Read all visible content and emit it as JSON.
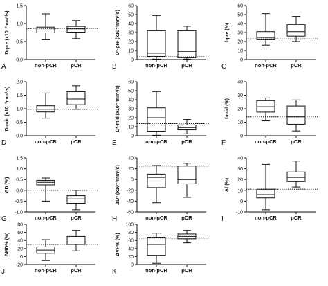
{
  "figure": {
    "background": "#ffffff",
    "box_fill": "#ffffff",
    "line_color": "#111111"
  },
  "chart_data": [
    {
      "type": "box",
      "panel_label": "A",
      "ylabel": "D-pre (x10⁻³mm²/s)",
      "categories": [
        "non-pCR",
        "pCR"
      ],
      "ylim": [
        0,
        1.5
      ],
      "yticks": [
        "0.0",
        "0.5",
        "1.0",
        "1.5"
      ],
      "ytick_values": [
        0,
        0.5,
        1.0,
        1.5
      ],
      "boxes": [
        {
          "min": 0.55,
          "q1": 0.74,
          "median": 0.82,
          "q3": 0.9,
          "max": 1.27
        },
        {
          "min": 0.58,
          "q1": 0.76,
          "median": 0.85,
          "q3": 0.92,
          "max": 1.08
        }
      ],
      "reference_line": 0.86
    },
    {
      "type": "box",
      "panel_label": "B",
      "ylabel": "D*-pre (x10⁻³mm²/s)",
      "categories": [
        "non-pCR",
        "pCR"
      ],
      "ylim": [
        0,
        60
      ],
      "yticks": [
        "0",
        "10",
        "20",
        "30",
        "40",
        "50",
        "60"
      ],
      "ytick_values": [
        0,
        10,
        20,
        30,
        40,
        50,
        60
      ],
      "boxes": [
        {
          "min": 0.5,
          "q1": 3.5,
          "median": 7,
          "q3": 32,
          "max": 49
        },
        {
          "min": 0.5,
          "q1": 2,
          "median": 9,
          "q3": 32,
          "max": 37
        }
      ],
      "reference_line": 3
    },
    {
      "type": "box",
      "panel_label": "C",
      "ylabel": "f-pre (%)",
      "categories": [
        "non-pCR",
        "pCR"
      ],
      "ylim": [
        0,
        60
      ],
      "yticks": [
        "0",
        "10",
        "20",
        "30",
        "40",
        "50",
        "60"
      ],
      "ytick_values": [
        0,
        10,
        20,
        30,
        40,
        50,
        60
      ],
      "boxes": [
        {
          "min": 16,
          "q1": 22,
          "median": 24.5,
          "q3": 31,
          "max": 51
        },
        {
          "min": 20,
          "q1": 26,
          "median": 31,
          "q3": 39,
          "max": 48
        }
      ],
      "reference_line": 23
    },
    {
      "type": "box",
      "panel_label": "D",
      "ylabel": "D-mid (x10⁻³mm²/s)",
      "categories": [
        "non-pCR",
        "pCR"
      ],
      "ylim": [
        0,
        2.0
      ],
      "yticks": [
        "0.0",
        "0.5",
        "1.0",
        "1.5",
        "2.0"
      ],
      "ytick_values": [
        0,
        0.5,
        1.0,
        1.5,
        2.0
      ],
      "boxes": [
        {
          "min": 0.65,
          "q1": 0.88,
          "median": 0.98,
          "q3": 1.11,
          "max": 1.58
        },
        {
          "min": 0.98,
          "q1": 1.15,
          "median": 1.36,
          "q3": 1.63,
          "max": 1.85
        }
      ],
      "reference_line": 0.98
    },
    {
      "type": "box",
      "panel_label": "E",
      "ylabel": "D*-mid (x10⁻³mm²/s)",
      "categories": [
        "non-pCR",
        "pCR"
      ],
      "ylim": [
        0,
        60
      ],
      "yticks": [
        "0",
        "10",
        "20",
        "30",
        "40",
        "50",
        "60"
      ],
      "ytick_values": [
        0,
        10,
        20,
        30,
        40,
        50,
        60
      ],
      "boxes": [
        {
          "min": 0.5,
          "q1": 5,
          "median": 20,
          "q3": 31,
          "max": 49
        },
        {
          "min": 2,
          "q1": 6.5,
          "median": 9,
          "q3": 12,
          "max": 18
        }
      ],
      "reference_line": 13.5
    },
    {
      "type": "box",
      "panel_label": "F",
      "ylabel": "f-mid (%)",
      "categories": [
        "non-pCR",
        "pCR"
      ],
      "ylim": [
        0,
        40
      ],
      "yticks": [
        "0",
        "10",
        "20",
        "30",
        "40"
      ],
      "ytick_values": [
        0,
        10,
        20,
        30,
        40
      ],
      "boxes": [
        {
          "min": 11,
          "q1": 17.5,
          "median": 21.5,
          "q3": 26,
          "max": 28
        },
        {
          "min": 3.5,
          "q1": 8.5,
          "median": 14,
          "q3": 22,
          "max": 26.5
        }
      ],
      "reference_line": 14
    },
    {
      "type": "box",
      "panel_label": "G",
      "ylabel": "ΔD (%)",
      "categories": [
        "non-pCR",
        "pCR"
      ],
      "ylim": [
        -1.0,
        1.5
      ],
      "yticks": [
        "-1.0",
        "-0.5",
        "0.0",
        "0.5",
        "1.0",
        "1.5"
      ],
      "ytick_values": [
        -1.0,
        -0.5,
        0,
        0.5,
        1.0,
        1.5
      ],
      "boxes": [
        {
          "min": -0.5,
          "q1": 0.25,
          "median": 0.37,
          "q3": 0.46,
          "max": 0.57
        },
        {
          "min": -0.9,
          "q1": -0.6,
          "median": -0.4,
          "q3": -0.25,
          "max": 0.0
        }
      ],
      "reference_line": 0.0
    },
    {
      "type": "box",
      "panel_label": "H",
      "ylabel": "ΔD* (x10⁻³mm²/s)",
      "categories": [
        "non-pCR",
        "pCR"
      ],
      "ylim": [
        -60,
        40
      ],
      "yticks": [
        "-60",
        "-40",
        "-20",
        "0",
        "20",
        "40"
      ],
      "ytick_values": [
        -60,
        -40,
        -20,
        0,
        20,
        40
      ],
      "boxes": [
        {
          "min": -43,
          "q1": -15,
          "median": 4,
          "q3": 10,
          "max": 26
        },
        {
          "min": -33,
          "q1": -8,
          "median": 0,
          "q3": 25,
          "max": 30
        }
      ],
      "reference_line": 25
    },
    {
      "type": "box",
      "panel_label": "I",
      "ylabel": "Δf (%)",
      "categories": [
        "non-pCR",
        "pCR"
      ],
      "ylim": [
        -10,
        40
      ],
      "yticks": [
        "-10",
        "0",
        "10",
        "20",
        "30",
        "40"
      ],
      "ytick_values": [
        -10,
        0,
        10,
        20,
        30,
        40
      ],
      "boxes": [
        {
          "min": -8,
          "q1": 3,
          "median": 6,
          "q3": 11,
          "max": 34
        },
        {
          "min": 13,
          "q1": 18,
          "median": 22,
          "q3": 27,
          "max": 37
        }
      ],
      "reference_line": 11
    },
    {
      "type": "box",
      "panel_label": "J",
      "ylabel": "ΔMD% (%)",
      "categories": [
        "non-pCR",
        "pCR"
      ],
      "ylim": [
        -20,
        80
      ],
      "yticks": [
        "-20",
        "0",
        "20",
        "40",
        "60",
        "80"
      ],
      "ytick_values": [
        -20,
        0,
        20,
        40,
        60,
        80
      ],
      "boxes": [
        {
          "min": -10,
          "q1": 8,
          "median": 16,
          "q3": 24,
          "max": 42
        },
        {
          "min": 14,
          "q1": 30,
          "median": 36,
          "q3": 50,
          "max": 65
        }
      ],
      "reference_line": 30
    },
    {
      "type": "box",
      "panel_label": "K",
      "ylabel": "ΔVP% (%)",
      "categories": [
        "non-pCR",
        "pCR"
      ],
      "ylim": [
        0,
        100
      ],
      "yticks": [
        "0",
        "20",
        "40",
        "60",
        "80",
        "100"
      ],
      "ytick_values": [
        0,
        20,
        40,
        60,
        80,
        100
      ],
      "boxes": [
        {
          "min": 3,
          "q1": 23,
          "median": 50,
          "q3": 68,
          "max": 78
        },
        {
          "min": 54,
          "q1": 64,
          "median": 70,
          "q3": 76,
          "max": 85
        }
      ],
      "reference_line": 66
    }
  ]
}
